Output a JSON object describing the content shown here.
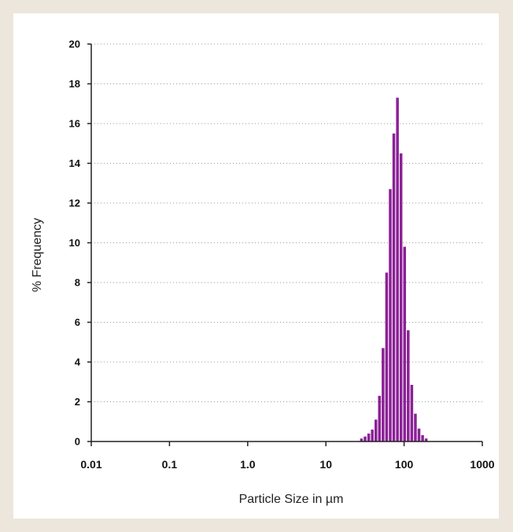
{
  "page": {
    "background_color": "#ece6dc",
    "panel_color": "#ffffff"
  },
  "chart_data": {
    "type": "bar",
    "title": "",
    "xlabel": "Particle Size in µm",
    "ylabel": "% Frequency",
    "x_scale": "log",
    "xlim": [
      0.01,
      1000
    ],
    "ylim": [
      0,
      20
    ],
    "x_ticks": [
      {
        "value": 0.01,
        "label": "0.01"
      },
      {
        "value": 0.1,
        "label": "0.1"
      },
      {
        "value": 1,
        "label": "1.0"
      },
      {
        "value": 10,
        "label": "10"
      },
      {
        "value": 100,
        "label": "100"
      },
      {
        "value": 1000,
        "label": "1000"
      }
    ],
    "y_ticks": [
      {
        "value": 0,
        "label": "0"
      },
      {
        "value": 2,
        "label": "2"
      },
      {
        "value": 4,
        "label": "4"
      },
      {
        "value": 6,
        "label": "6"
      },
      {
        "value": 8,
        "label": "8"
      },
      {
        "value": 10,
        "label": "10"
      },
      {
        "value": 12,
        "label": "12"
      },
      {
        "value": 14,
        "label": "14"
      },
      {
        "value": 16,
        "label": "16"
      },
      {
        "value": 18,
        "label": "18"
      },
      {
        "value": 20,
        "label": "20"
      }
    ],
    "grid": "horizontal dotted",
    "bar_color": "#8b2196",
    "bars": [
      {
        "x": 28.5,
        "value": 0.15
      },
      {
        "x": 31.7,
        "value": 0.25
      },
      {
        "x": 35.3,
        "value": 0.4
      },
      {
        "x": 39.2,
        "value": 0.6
      },
      {
        "x": 43.6,
        "value": 1.1
      },
      {
        "x": 48.4,
        "value": 2.3
      },
      {
        "x": 53.8,
        "value": 4.7
      },
      {
        "x": 59.8,
        "value": 8.5
      },
      {
        "x": 66.5,
        "value": 12.7
      },
      {
        "x": 73.9,
        "value": 15.5
      },
      {
        "x": 82.2,
        "value": 17.3
      },
      {
        "x": 91.3,
        "value": 14.5
      },
      {
        "x": 101.5,
        "value": 9.8
      },
      {
        "x": 112.8,
        "value": 5.6
      },
      {
        "x": 125.4,
        "value": 2.85
      },
      {
        "x": 139.4,
        "value": 1.4
      },
      {
        "x": 155.0,
        "value": 0.65
      },
      {
        "x": 172.3,
        "value": 0.32
      },
      {
        "x": 191.5,
        "value": 0.15
      }
    ]
  }
}
